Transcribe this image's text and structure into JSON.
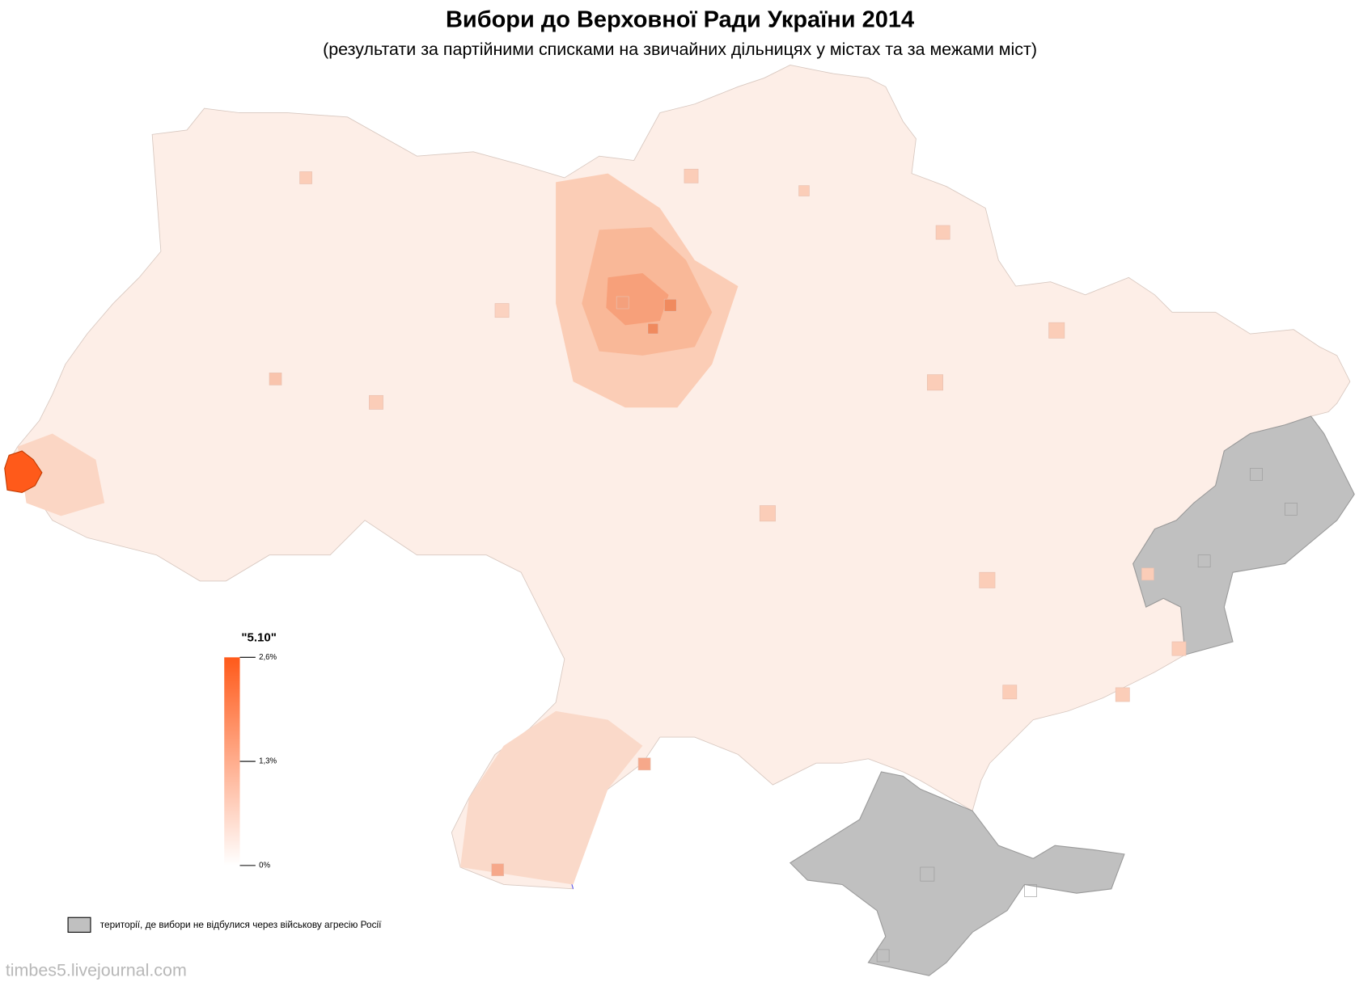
{
  "header": {
    "title": "Вибори до Верховної Ради України 2014",
    "subtitle": "(результати за партійними списками на звичайних дільницях у містах та за межами міст)"
  },
  "legend": {
    "title": "\"5.10\"",
    "range": [
      0,
      2.6
    ],
    "colors": [
      "#ffffff",
      "#ff5a1a"
    ],
    "ticks": [
      {
        "value": 2.6,
        "label": "2,6%"
      },
      {
        "value": 1.3,
        "label": "1,3%"
      },
      {
        "value": 0,
        "label": "0%"
      }
    ]
  },
  "note": {
    "label": "території, де вибори не відбулися через військову агресію Росії",
    "color": "#c0c0c0"
  },
  "watermark": "timbes5.livejournal.com"
}
